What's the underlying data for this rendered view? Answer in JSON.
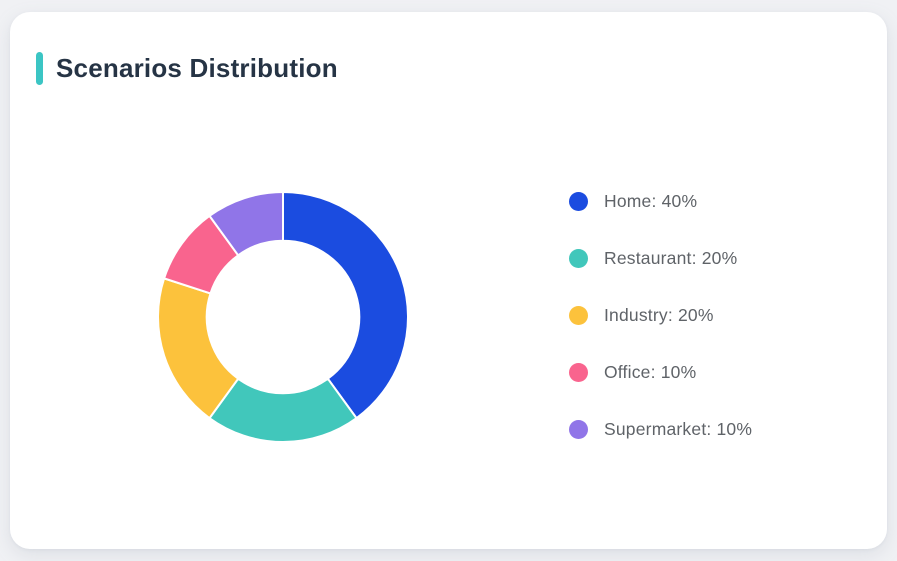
{
  "page": {
    "background": "#f0f1f4"
  },
  "card": {
    "background": "#ffffff"
  },
  "header": {
    "title": "Scenarios Distribution",
    "accent_color": "#3bc5c4",
    "title_color": "#263445"
  },
  "legend_text_color": "#5f6368",
  "chart_data": {
    "type": "pie",
    "subtype": "donut",
    "title": "Scenarios Distribution",
    "categories": [
      "Home",
      "Restaurant",
      "Industry",
      "Office",
      "Supermarket"
    ],
    "values": [
      40,
      20,
      20,
      10,
      10
    ],
    "unit": "%",
    "colors": [
      "#1b4ce0",
      "#41c7bb",
      "#fcc23c",
      "#f9648e",
      "#9075e8"
    ],
    "start_angle_deg": 0,
    "direction": "clockwise",
    "inner_radius_ratio": 0.61,
    "slice_border_color": "#ffffff",
    "slice_border_width": 2,
    "legend_position": "right",
    "legend_labels": [
      "Home: 40%",
      "Restaurant: 20%",
      "Industry: 20%",
      "Office: 10%",
      "Supermarket: 10%"
    ]
  }
}
